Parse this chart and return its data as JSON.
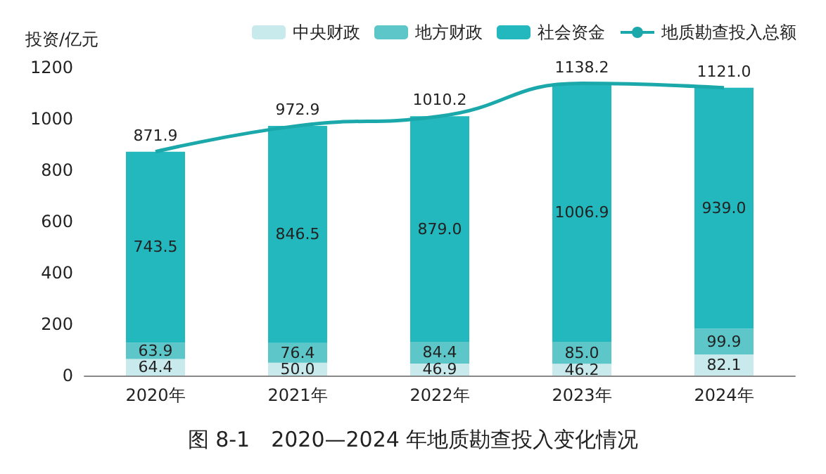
{
  "chart_data": {
    "type": "bar",
    "title": "图 8-1　2020—2024 年地质勘查投入变化情况",
    "ylabel": "投资/亿元",
    "categories": [
      "2020年",
      "2021年",
      "2022年",
      "2023年",
      "2024年"
    ],
    "stacked": true,
    "series": [
      {
        "name": "中央财政",
        "color": "#c8eaec",
        "values": [
          64.4,
          50.0,
          46.9,
          46.2,
          82.1
        ],
        "value_labels": [
          "64.4",
          "50.0",
          "46.9",
          "46.2",
          "82.1"
        ]
      },
      {
        "name": "地方财政",
        "color": "#5cc6c9",
        "values": [
          63.9,
          76.4,
          84.4,
          85.0,
          99.9
        ],
        "value_labels": [
          "63.9",
          "76.4",
          "84.4",
          "85.0",
          "99.9"
        ]
      },
      {
        "name": "社会资金",
        "color": "#22b8bd",
        "values": [
          743.5,
          846.5,
          879.0,
          1006.9,
          939.0
        ],
        "value_labels": [
          "743.5",
          "846.5",
          "879.0",
          "1006.9",
          "939.0"
        ]
      },
      {
        "name": "地质勘查投入总额",
        "type": "line",
        "color": "#1ba8aa",
        "values": [
          871.9,
          972.9,
          1010.2,
          1138.2,
          1121.0
        ],
        "value_labels": [
          "871.9",
          "972.9",
          "1010.2",
          "1138.2",
          "1121.0"
        ]
      }
    ],
    "ylim": [
      0,
      1200
    ],
    "yticks": [
      0,
      200,
      400,
      600,
      800,
      1000,
      1200
    ],
    "grid": false,
    "legend": "top right",
    "marker": "none",
    "line_style": "solid"
  }
}
